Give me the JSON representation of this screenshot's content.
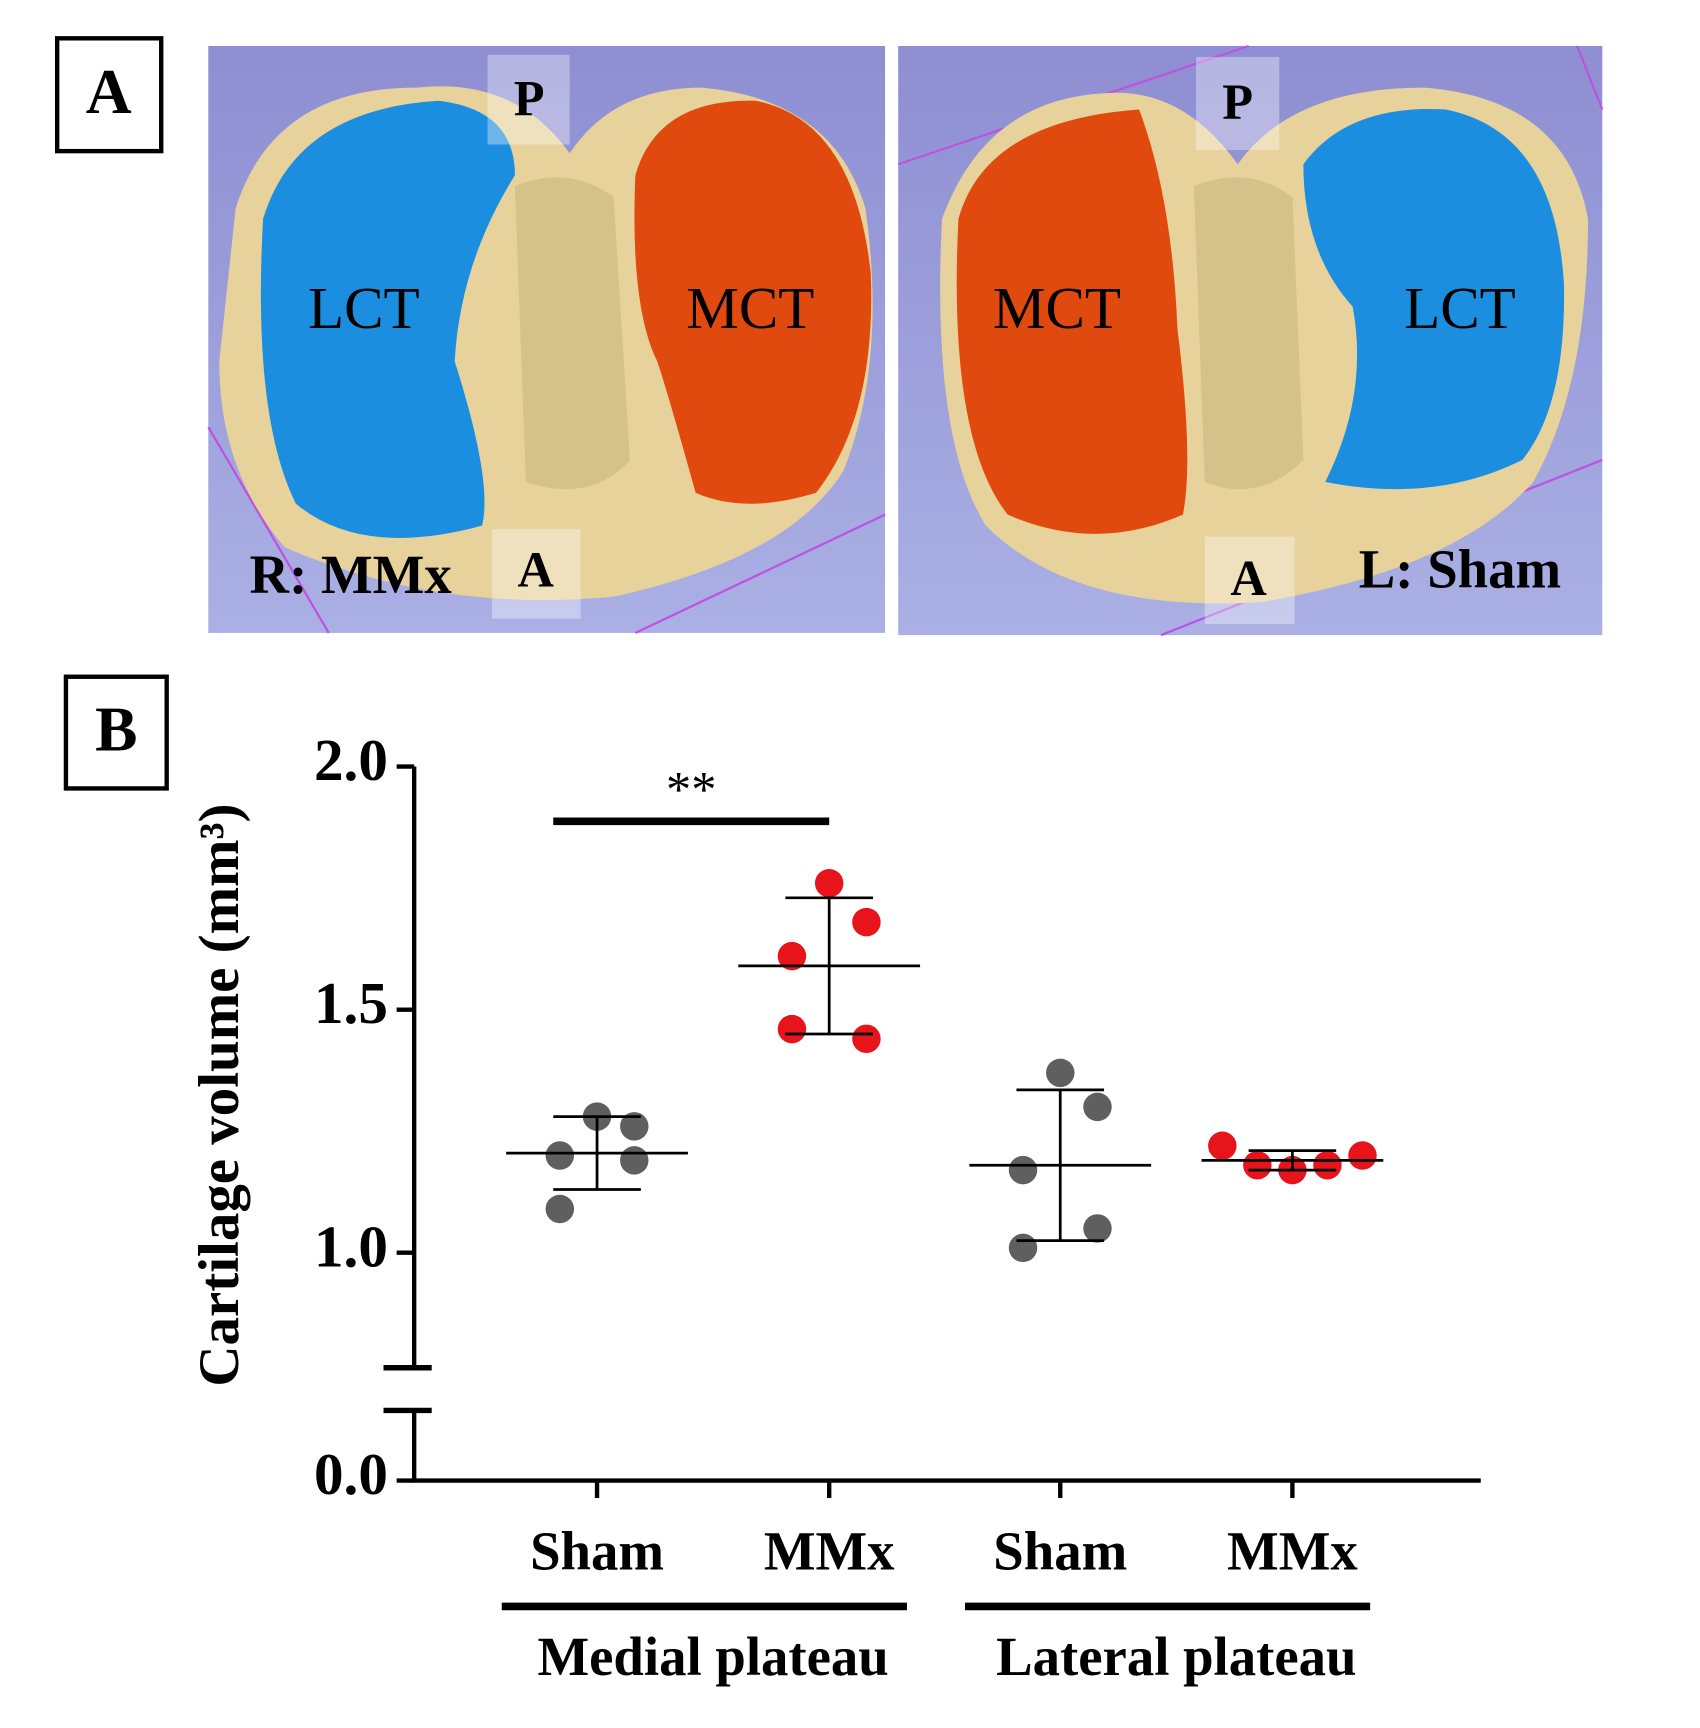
{
  "panel_a": {
    "label": "A",
    "left": {
      "top": "P",
      "lateral": "LCT",
      "medial": "MCT",
      "side": "R: MMx",
      "bottom": "A"
    },
    "right": {
      "top": "P",
      "medial": "MCT",
      "lateral": "LCT",
      "side": "L: Sham",
      "bottom": "A"
    }
  },
  "chart_data": {
    "type": "scatter",
    "panel_label": "B",
    "y_label": "Cartilage volume (mm³)",
    "ylim": [
      0,
      2
    ],
    "y_break": 0.75,
    "yticks": [
      {
        "value": 0,
        "label": "0.0"
      },
      {
        "value": 1,
        "label": "1.0"
      },
      1.5,
      {
        "value": 2,
        "label": "2.0"
      }
    ],
    "groups": [
      {
        "name": "Sham",
        "color": "#5f5f5f",
        "values": [
          1.28,
          1.26,
          1.2,
          1.19,
          1.09
        ],
        "mean": 1.205,
        "sd": 0.075
      },
      {
        "name": "MMx",
        "color": "#e8141c",
        "values": [
          1.76,
          1.68,
          1.61,
          1.44,
          1.46
        ],
        "mean": 1.59,
        "sd": 0.14
      },
      {
        "name": "Sham",
        "color": "#5f5f5f",
        "values": [
          1.37,
          1.3,
          1.17,
          1.05,
          1.01
        ],
        "mean": 1.18,
        "sd": 0.155
      },
      {
        "name": "MMx",
        "color": "#e8141c",
        "values": [
          1.22,
          1.18,
          1.17,
          1.18,
          1.2
        ],
        "mean": 1.19,
        "sd": 0.02
      }
    ],
    "plateaus": [
      "Medial plateau",
      "Lateral plateau"
    ],
    "significance": {
      "label": "**",
      "between": [
        0,
        1
      ]
    }
  }
}
